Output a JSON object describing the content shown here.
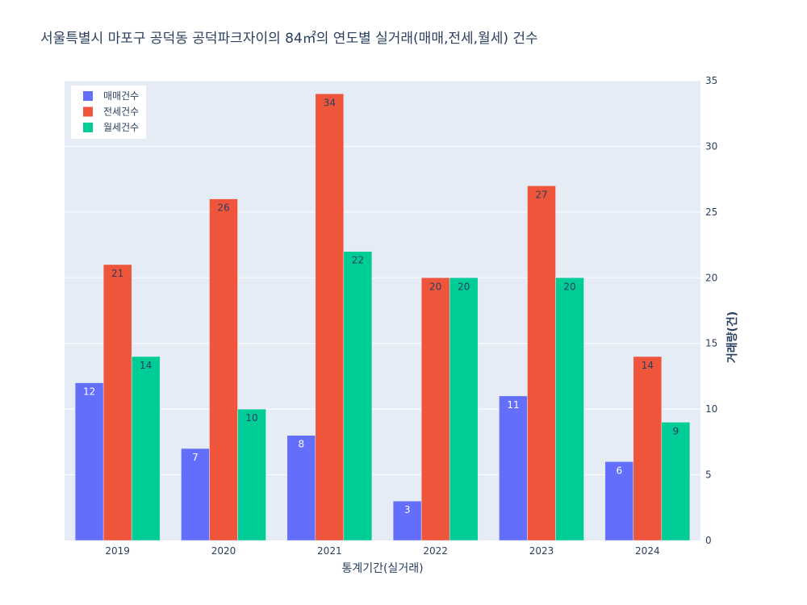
{
  "chart_data": {
    "type": "bar",
    "title": "서울특별시 마포구 공덕동 공덕파크자이의 84㎡의 연도별 실거래(매매,전세,월세) 건수",
    "xlabel": "통계기간(실거래)",
    "ylabel": "거래량(건)",
    "categories": [
      "2019",
      "2020",
      "2021",
      "2022",
      "2023",
      "2024"
    ],
    "series": [
      {
        "name": "매매건수",
        "values": [
          12,
          7,
          8,
          3,
          11,
          6
        ],
        "color": "#636efa",
        "label_color": "#ffffff"
      },
      {
        "name": "전세건수",
        "values": [
          21,
          26,
          34,
          20,
          27,
          14
        ],
        "color": "#ef553b",
        "label_color": "#2a3f5f"
      },
      {
        "name": "월세건수",
        "values": [
          14,
          10,
          22,
          20,
          20,
          9
        ],
        "color": "#00cc96",
        "label_color": "#2a3f5f"
      }
    ],
    "ylim": [
      0,
      35
    ],
    "yticks": [
      0,
      5,
      10,
      15,
      20,
      25,
      30,
      35
    ],
    "yaxis_side": "right",
    "grid": true,
    "legend_position": "top-left",
    "plot_background": "#e5ecf6"
  }
}
